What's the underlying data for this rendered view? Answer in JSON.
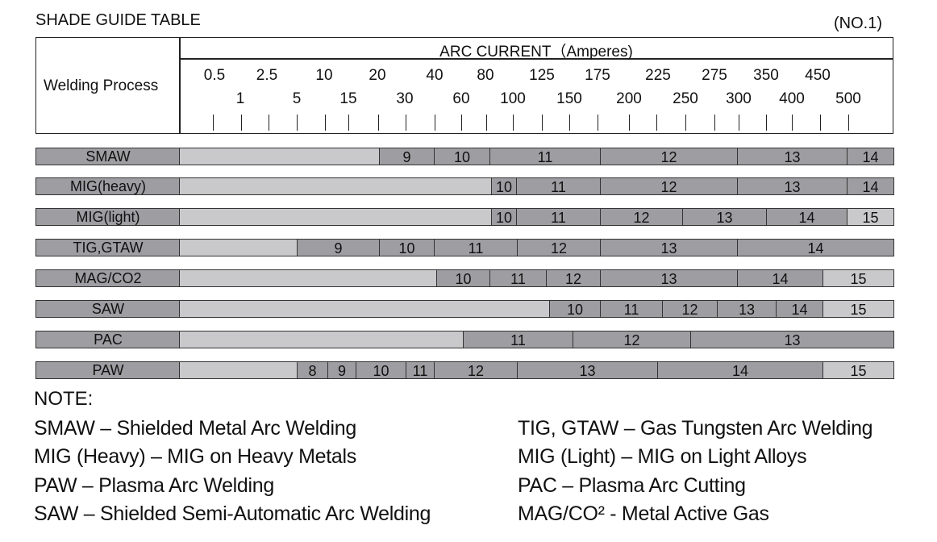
{
  "title": "SHADE GUIDE TABLE",
  "doc_no": "(NO.1)",
  "header": {
    "process_label": "Welding Process",
    "arc_label": "ARC CURRENT（Amperes)",
    "ticks_top": [
      "0.5",
      "2.5",
      "10",
      "20",
      "40",
      "80",
      "125",
      "175",
      "225",
      "275",
      "350",
      "450"
    ],
    "ticks_bottom": [
      "1",
      "5",
      "15",
      "30",
      "60",
      "100",
      "150",
      "200",
      "250",
      "300",
      "400",
      "500"
    ]
  },
  "rows": [
    {
      "label": "SMAW",
      "segments": [
        {
          "text": "",
          "tone": "light"
        },
        {
          "text": "9",
          "tone": "dark"
        },
        {
          "text": "10",
          "tone": "dark"
        },
        {
          "text": "11",
          "tone": "dark"
        },
        {
          "text": "12",
          "tone": "dark"
        },
        {
          "text": "13",
          "tone": "dark"
        },
        {
          "text": "14",
          "tone": "dark"
        }
      ]
    },
    {
      "label": "MIG(heavy)",
      "segments": [
        {
          "text": "",
          "tone": "light"
        },
        {
          "text": "10",
          "tone": "dark"
        },
        {
          "text": "11",
          "tone": "dark"
        },
        {
          "text": "12",
          "tone": "dark"
        },
        {
          "text": "13",
          "tone": "dark"
        },
        {
          "text": "14",
          "tone": "dark"
        }
      ]
    },
    {
      "label": "MIG(light)",
      "segments": [
        {
          "text": "",
          "tone": "light"
        },
        {
          "text": "10",
          "tone": "dark"
        },
        {
          "text": "11",
          "tone": "dark"
        },
        {
          "text": "12",
          "tone": "dark"
        },
        {
          "text": "13",
          "tone": "dark"
        },
        {
          "text": "14",
          "tone": "dark"
        },
        {
          "text": "15",
          "tone": "light"
        }
      ]
    },
    {
      "label": "TIG,GTAW",
      "segments": [
        {
          "text": "",
          "tone": "light"
        },
        {
          "text": "9",
          "tone": "dark"
        },
        {
          "text": "10",
          "tone": "dark"
        },
        {
          "text": "11",
          "tone": "dark"
        },
        {
          "text": "12",
          "tone": "dark"
        },
        {
          "text": "13",
          "tone": "dark"
        },
        {
          "text": "14",
          "tone": "dark"
        }
      ]
    },
    {
      "label": "MAG/CO2",
      "segments": [
        {
          "text": "",
          "tone": "light"
        },
        {
          "text": "10",
          "tone": "dark"
        },
        {
          "text": "11",
          "tone": "dark"
        },
        {
          "text": "12",
          "tone": "dark"
        },
        {
          "text": "13",
          "tone": "dark"
        },
        {
          "text": "14",
          "tone": "dark"
        },
        {
          "text": "15",
          "tone": "light"
        }
      ]
    },
    {
      "label": "SAW",
      "segments": [
        {
          "text": "",
          "tone": "light"
        },
        {
          "text": "10",
          "tone": "dark"
        },
        {
          "text": "11",
          "tone": "dark"
        },
        {
          "text": "12",
          "tone": "dark"
        },
        {
          "text": "13",
          "tone": "dark"
        },
        {
          "text": "14",
          "tone": "dark"
        },
        {
          "text": "15",
          "tone": "light"
        }
      ]
    },
    {
      "label": "PAC",
      "segments": [
        {
          "text": "",
          "tone": "light"
        },
        {
          "text": "11",
          "tone": "dark"
        },
        {
          "text": "12",
          "tone": "dark"
        },
        {
          "text": "13",
          "tone": "dark"
        }
      ]
    },
    {
      "label": "PAW",
      "segments": [
        {
          "text": "",
          "tone": "light"
        },
        {
          "text": "8",
          "tone": "dark"
        },
        {
          "text": "9",
          "tone": "dark"
        },
        {
          "text": "10",
          "tone": "dark"
        },
        {
          "text": "11",
          "tone": "dark"
        },
        {
          "text": "12",
          "tone": "dark"
        },
        {
          "text": "13",
          "tone": "dark"
        },
        {
          "text": "14",
          "tone": "dark"
        },
        {
          "text": "15",
          "tone": "light"
        }
      ]
    }
  ],
  "notes": {
    "title": "NOTE:",
    "left": [
      "SMAW – Shielded Metal Arc Welding",
      "MIG (Heavy) – MIG on Heavy Metals",
      "PAW – Plasma Arc Welding",
      "SAW – Shielded Semi-Automatic Arc Welding"
    ],
    "right": [
      "TIG, GTAW – Gas Tungsten Arc Welding",
      "MIG (Light) – MIG on Light Alloys",
      "PAC – Plasma Arc Cutting",
      "MAG/CO² - Metal Active Gas"
    ]
  }
}
